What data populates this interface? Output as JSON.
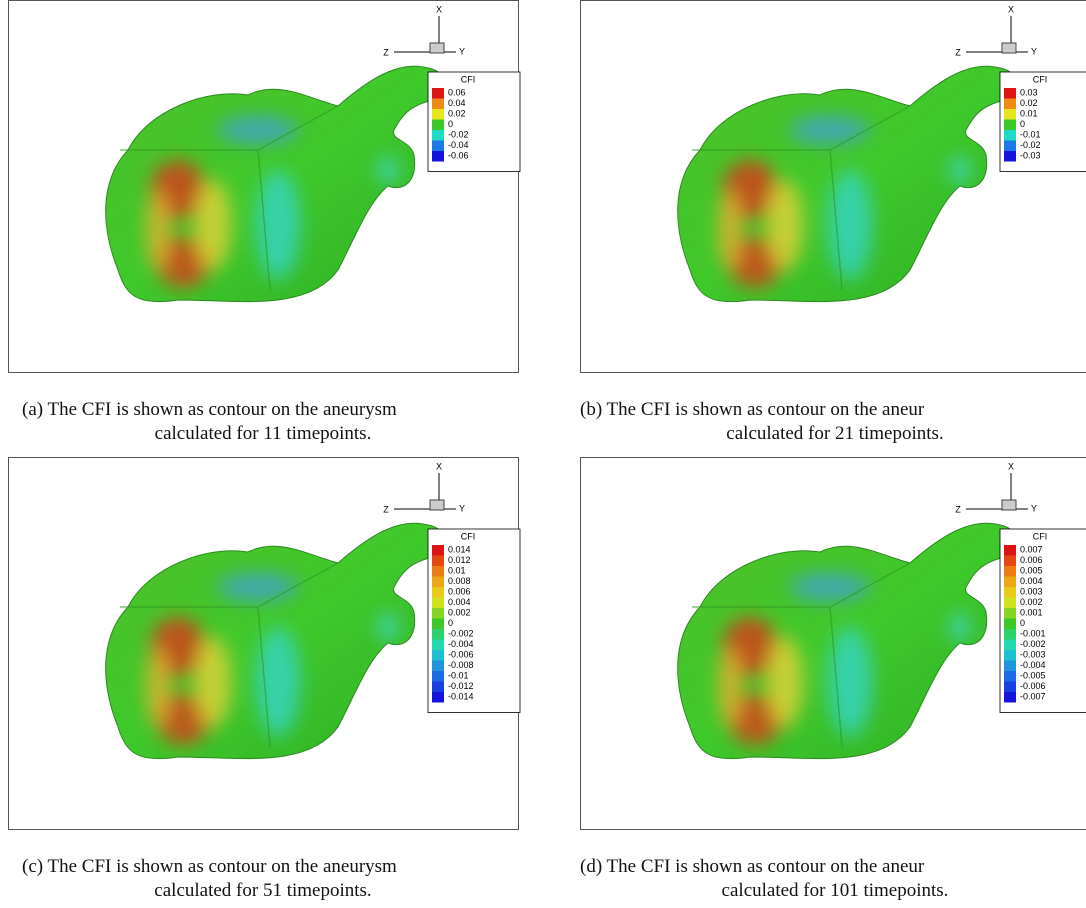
{
  "panels": [
    {
      "axes": {
        "x": "X",
        "y": "Y",
        "z": "Z"
      },
      "legend": {
        "title": "CFI",
        "labels": [
          "0.06",
          "0.04",
          "0.02",
          "0",
          "-0.02",
          "-0.04",
          "-0.06"
        ]
      },
      "caption": [
        "(a) The CFI is shown as contour on the aneurysm",
        "calculated for 11 timepoints."
      ]
    },
    {
      "axes": {
        "x": "X",
        "y": "Y",
        "z": "Z"
      },
      "legend": {
        "title": "CFI",
        "labels": [
          "0.03",
          "0.02",
          "0.01",
          "0",
          "-0.01",
          "-0.02",
          "-0.03"
        ]
      },
      "caption": [
        "(b) The CFI is shown as contour on the aneur",
        "calculated for 21 timepoints."
      ]
    },
    {
      "axes": {
        "x": "X",
        "y": "Y",
        "z": "Z"
      },
      "legend": {
        "title": "CFI",
        "labels": [
          "0.014",
          "0.012",
          "0.01",
          "0.008",
          "0.006",
          "0.004",
          "0.002",
          "0",
          "-0.002",
          "-0.004",
          "-0.006",
          "-0.008",
          "-0.01",
          "-0.012",
          "-0.014"
        ]
      },
      "caption": [
        "(c) The CFI is shown as contour on the aneurysm",
        "calculated for 51 timepoints."
      ]
    },
    {
      "axes": {
        "x": "X",
        "y": "Y",
        "z": "Z"
      },
      "legend": {
        "title": "CFI",
        "labels": [
          "0.007",
          "0.006",
          "0.005",
          "0.004",
          "0.003",
          "0.002",
          "0.001",
          "0",
          "-0.001",
          "-0.002",
          "-0.003",
          "-0.004",
          "-0.005",
          "-0.006",
          "-0.007"
        ]
      },
      "caption": [
        "(d) The CFI is shown as contour on the aneur",
        "calculated for 101 timepoints."
      ]
    }
  ]
}
